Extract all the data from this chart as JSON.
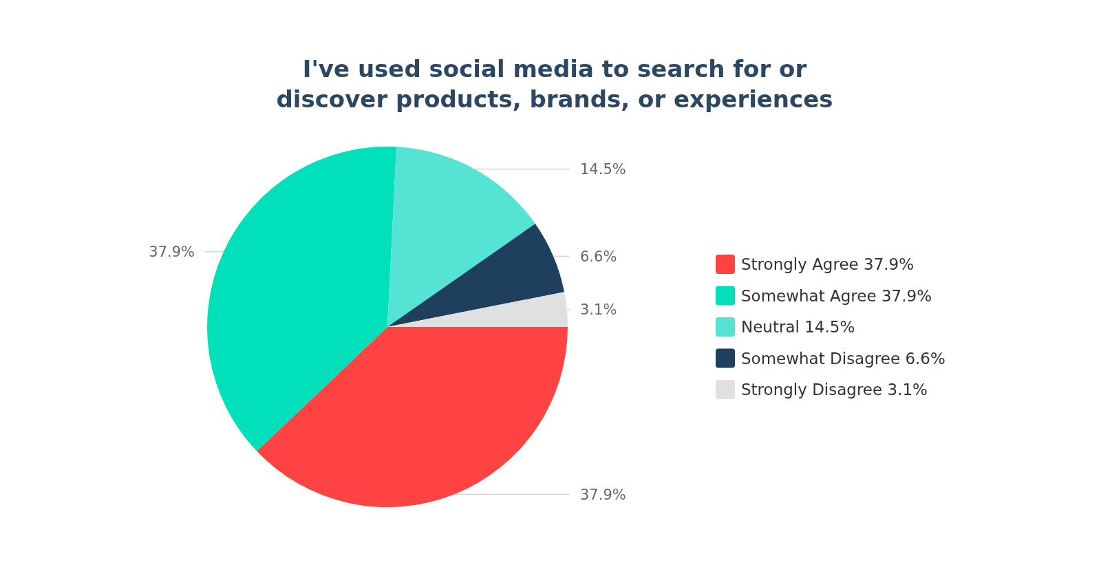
{
  "chart_data": {
    "type": "pie",
    "title": "I've used social media to search for or\ndiscover products, brands, or experiences",
    "categories": [
      "Strongly Agree 37.9%",
      "Somewhat Agree 37.9%",
      "Neutral 14.5%",
      "Somewhat Disagree 6.6%",
      "Strongly Disagree 3.1%"
    ],
    "values": [
      37.9,
      37.9,
      14.5,
      6.6,
      3.1
    ],
    "value_labels": [
      "37.9%",
      "37.9%",
      "14.5%",
      "6.6%",
      "3.1%"
    ],
    "colors": [
      "#ff4343",
      "#00e0bb",
      "#55e3d3",
      "#1f3f5f",
      "#e0e0e0"
    ],
    "legend": "right"
  }
}
